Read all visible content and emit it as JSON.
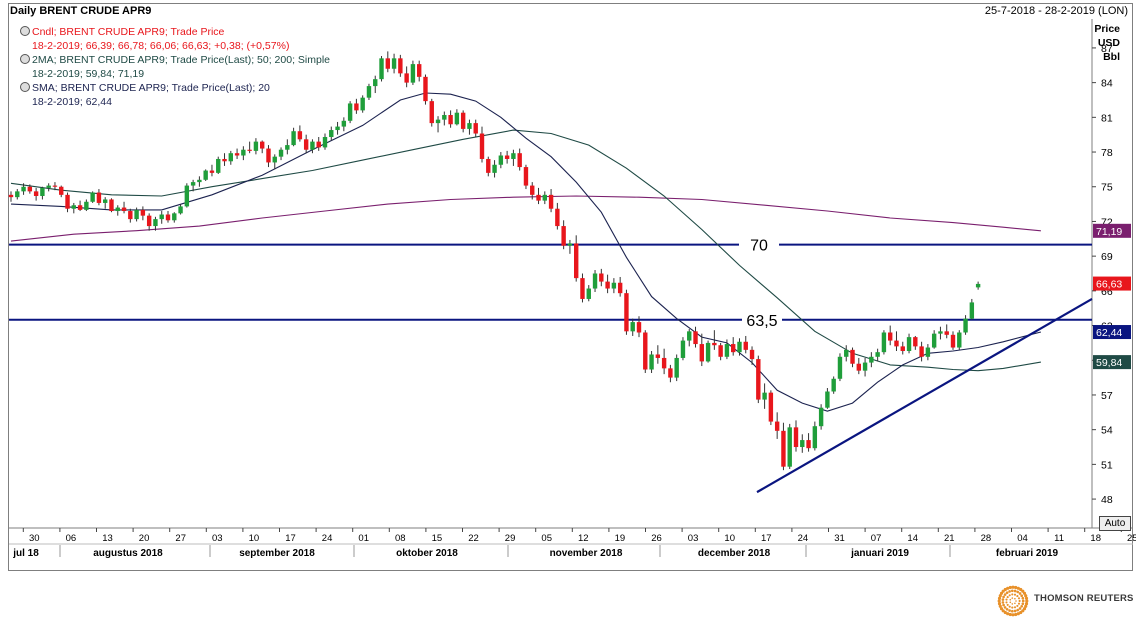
{
  "header": {
    "title": "Daily BRENT CRUDE APR9",
    "date_range": "25-7-2018 - 28-2-2019 (LON)"
  },
  "legend": {
    "line1": "Cndl; BRENT CRUDE APR9; Trade Price",
    "line2": "18-2-2019; 66,39; 66,78; 66,06; 66,63; +0,38; (+0,57%)",
    "line3": "2MA; BRENT CRUDE APR9; Trade Price(Last);  50; 200; Simple",
    "line4": "18-2-2019; 59,84; 71,19",
    "line5": "SMA; BRENT CRUDE APR9; Trade Price(Last);  20",
    "line6": "18-2-2019; 62,44"
  },
  "axis_unit": {
    "line1": "Price",
    "line2": "USD",
    "line3": "Bbl"
  },
  "auto_button": "Auto",
  "brand": "THOMSON REUTERS",
  "colors": {
    "up": "#1f9e3a",
    "down": "#e8161c",
    "sma20": "#1c2350",
    "ma50": "#1f4a45",
    "ma200": "#7a1f6e",
    "level": "#0a1580",
    "trend": "#0a1580"
  },
  "chart_data": {
    "type": "candlestick",
    "title": "Daily BRENT CRUDE APR9",
    "ylim": [
      45.5,
      89.5
    ],
    "yticks": [
      "48",
      "51",
      "54",
      "57",
      "60",
      "63",
      "66",
      "69",
      "72",
      "75",
      "78",
      "81",
      "84",
      "87"
    ],
    "xticks": [
      "30",
      "06",
      "13",
      "20",
      "27",
      "03",
      "10",
      "17",
      "24",
      "01",
      "08",
      "15",
      "22",
      "29",
      "05",
      "12",
      "19",
      "26",
      "03",
      "10",
      "17",
      "24",
      "31",
      "07",
      "14",
      "21",
      "28",
      "04",
      "11",
      "18",
      "25"
    ],
    "months": [
      "jul 18",
      "augustus 2018",
      "september 2018",
      "oktober 2018",
      "november 2018",
      "december 2018",
      "januari 2019",
      "februari 2019"
    ],
    "levels": [
      {
        "value": 70,
        "label": "70"
      },
      {
        "value": 63.5,
        "label": "63,5"
      }
    ],
    "trendline": [
      [
        "2018-12-24",
        48.6
      ],
      [
        "2019-02-28",
        65.2
      ]
    ],
    "last_value_tags": [
      {
        "value": 71.19,
        "label": "71,19",
        "series": "ma200"
      },
      {
        "value": 66.63,
        "label": "66,63",
        "series": "price"
      },
      {
        "value": 62.44,
        "label": "62,44",
        "series": "sma20"
      },
      {
        "value": 59.84,
        "label": "59,84",
        "series": "ma50"
      }
    ],
    "ohlc": [
      [
        74.3,
        74.6,
        73.7,
        74.1
      ],
      [
        74.1,
        74.8,
        73.9,
        74.6
      ],
      [
        74.6,
        75.3,
        74.3,
        75.0
      ],
      [
        75.0,
        75.2,
        74.4,
        74.6
      ],
      [
        74.6,
        74.9,
        73.8,
        74.2
      ],
      [
        74.2,
        75.0,
        73.9,
        74.9
      ],
      [
        74.9,
        75.3,
        74.6,
        75.1
      ],
      [
        75.1,
        75.4,
        74.7,
        75.0
      ],
      [
        75.0,
        75.1,
        74.1,
        74.3
      ],
      [
        74.3,
        74.5,
        72.8,
        73.1
      ],
      [
        73.1,
        73.6,
        72.7,
        73.4
      ],
      [
        73.4,
        73.8,
        72.9,
        73.0
      ],
      [
        73.0,
        73.9,
        72.9,
        73.7
      ],
      [
        73.7,
        74.6,
        73.6,
        74.5
      ],
      [
        74.5,
        74.8,
        73.4,
        73.6
      ],
      [
        73.6,
        74.1,
        73.1,
        73.9
      ],
      [
        73.9,
        74.0,
        72.8,
        72.9
      ],
      [
        72.9,
        73.4,
        72.5,
        73.2
      ],
      [
        73.2,
        73.7,
        72.7,
        72.9
      ],
      [
        72.9,
        73.1,
        71.9,
        72.2
      ],
      [
        72.2,
        73.2,
        72.0,
        73.0
      ],
      [
        73.0,
        73.3,
        72.1,
        72.5
      ],
      [
        72.5,
        72.7,
        71.2,
        71.6
      ],
      [
        71.6,
        72.4,
        71.2,
        72.2
      ],
      [
        72.2,
        72.9,
        71.8,
        72.6
      ],
      [
        72.6,
        72.9,
        71.9,
        72.1
      ],
      [
        72.1,
        72.8,
        71.9,
        72.7
      ],
      [
        72.7,
        73.5,
        72.6,
        73.3
      ],
      [
        73.3,
        75.3,
        73.2,
        75.1
      ],
      [
        75.1,
        75.6,
        74.6,
        75.4
      ],
      [
        75.4,
        75.9,
        75.0,
        75.6
      ],
      [
        75.6,
        76.5,
        75.5,
        76.4
      ],
      [
        76.4,
        76.9,
        75.9,
        76.2
      ],
      [
        76.2,
        77.6,
        76.1,
        77.4
      ],
      [
        77.4,
        77.9,
        76.8,
        77.2
      ],
      [
        77.2,
        78.1,
        76.9,
        77.9
      ],
      [
        77.9,
        78.3,
        77.4,
        77.7
      ],
      [
        77.7,
        78.5,
        77.3,
        78.2
      ],
      [
        78.2,
        78.9,
        77.9,
        78.1
      ],
      [
        78.1,
        79.2,
        77.8,
        78.9
      ],
      [
        78.9,
        79.0,
        77.9,
        78.3
      ],
      [
        78.3,
        78.6,
        76.7,
        77.1
      ],
      [
        77.1,
        77.8,
        76.5,
        77.6
      ],
      [
        77.6,
        78.4,
        77.3,
        78.2
      ],
      [
        78.2,
        79.1,
        77.8,
        78.6
      ],
      [
        78.6,
        80.1,
        78.5,
        79.8
      ],
      [
        79.8,
        80.3,
        78.9,
        79.1
      ],
      [
        79.1,
        79.5,
        77.9,
        78.2
      ],
      [
        78.2,
        79.1,
        77.9,
        78.9
      ],
      [
        78.9,
        79.3,
        78.1,
        78.4
      ],
      [
        78.4,
        79.6,
        78.2,
        79.3
      ],
      [
        79.3,
        80.2,
        79.0,
        79.9
      ],
      [
        79.9,
        80.6,
        79.5,
        80.2
      ],
      [
        80.2,
        81.0,
        79.8,
        80.7
      ],
      [
        80.7,
        82.4,
        80.5,
        82.2
      ],
      [
        82.2,
        82.6,
        81.3,
        81.6
      ],
      [
        81.6,
        82.9,
        81.4,
        82.7
      ],
      [
        82.7,
        83.9,
        82.5,
        83.7
      ],
      [
        83.7,
        84.6,
        83.1,
        84.3
      ],
      [
        84.3,
        86.3,
        84.1,
        86.1
      ],
      [
        86.1,
        86.7,
        84.9,
        85.2
      ],
      [
        85.2,
        86.5,
        84.8,
        86.1
      ],
      [
        86.1,
        86.4,
        84.5,
        84.8
      ],
      [
        84.8,
        85.4,
        83.6,
        84.0
      ],
      [
        84.0,
        85.9,
        83.8,
        85.6
      ],
      [
        85.6,
        85.9,
        84.1,
        84.5
      ],
      [
        84.5,
        84.7,
        82.1,
        82.4
      ],
      [
        82.4,
        82.6,
        80.2,
        80.5
      ],
      [
        80.5,
        81.1,
        79.7,
        80.8
      ],
      [
        80.8,
        81.5,
        80.3,
        81.2
      ],
      [
        81.2,
        81.6,
        80.1,
        80.4
      ],
      [
        80.4,
        81.7,
        80.3,
        81.4
      ],
      [
        81.4,
        81.6,
        79.7,
        80.0
      ],
      [
        80.0,
        80.8,
        79.5,
        80.5
      ],
      [
        80.5,
        80.8,
        79.3,
        79.6
      ],
      [
        79.6,
        80.2,
        77.1,
        77.4
      ],
      [
        77.4,
        77.6,
        75.9,
        76.2
      ],
      [
        76.2,
        77.3,
        75.8,
        76.9
      ],
      [
        76.9,
        78.0,
        76.6,
        77.7
      ],
      [
        77.7,
        78.1,
        77.0,
        77.4
      ],
      [
        77.4,
        78.2,
        76.8,
        77.9
      ],
      [
        77.9,
        78.3,
        76.4,
        76.7
      ],
      [
        76.7,
        76.9,
        74.8,
        75.1
      ],
      [
        75.1,
        75.4,
        73.9,
        74.3
      ],
      [
        74.3,
        74.9,
        73.5,
        73.8
      ],
      [
        73.8,
        74.6,
        73.5,
        74.3
      ],
      [
        74.3,
        74.8,
        72.8,
        73.1
      ],
      [
        73.1,
        73.6,
        71.3,
        71.6
      ],
      [
        71.6,
        72.1,
        69.6,
        69.9
      ],
      [
        69.9,
        70.4,
        69.2,
        70.1
      ],
      [
        70.1,
        70.8,
        66.8,
        67.1
      ],
      [
        67.1,
        67.5,
        65.0,
        65.3
      ],
      [
        65.3,
        66.5,
        65.1,
        66.2
      ],
      [
        66.2,
        67.8,
        65.9,
        67.5
      ],
      [
        67.5,
        67.9,
        66.4,
        66.8
      ],
      [
        66.8,
        67.4,
        65.8,
        66.2
      ],
      [
        66.2,
        67.1,
        65.8,
        66.7
      ],
      [
        66.7,
        67.2,
        65.5,
        65.8
      ],
      [
        65.8,
        66.1,
        62.2,
        62.5
      ],
      [
        62.5,
        63.6,
        62.1,
        63.3
      ],
      [
        63.3,
        63.8,
        62.0,
        62.4
      ],
      [
        62.4,
        62.6,
        58.9,
        59.2
      ],
      [
        59.2,
        60.8,
        58.9,
        60.5
      ],
      [
        60.5,
        61.3,
        59.7,
        60.2
      ],
      [
        60.2,
        61.0,
        58.8,
        59.3
      ],
      [
        59.3,
        59.6,
        58.1,
        58.5
      ],
      [
        58.5,
        60.5,
        58.2,
        60.2
      ],
      [
        60.2,
        62.0,
        60.0,
        61.7
      ],
      [
        61.7,
        62.7,
        61.2,
        62.5
      ],
      [
        62.5,
        62.9,
        61.1,
        61.4
      ],
      [
        61.4,
        62.3,
        59.5,
        59.9
      ],
      [
        59.9,
        61.7,
        59.8,
        61.5
      ],
      [
        61.5,
        62.6,
        60.9,
        61.3
      ],
      [
        61.3,
        61.5,
        60.0,
        60.3
      ],
      [
        60.3,
        61.8,
        60.1,
        61.4
      ],
      [
        61.4,
        62.0,
        60.4,
        60.7
      ],
      [
        60.7,
        61.9,
        60.4,
        61.6
      ],
      [
        61.6,
        62.1,
        60.6,
        60.9
      ],
      [
        60.9,
        61.2,
        59.6,
        60.1
      ],
      [
        60.1,
        60.4,
        56.3,
        56.6
      ],
      [
        56.6,
        58.0,
        55.8,
        57.2
      ],
      [
        57.2,
        57.4,
        54.4,
        54.7
      ],
      [
        54.7,
        55.5,
        53.2,
        53.9
      ],
      [
        53.9,
        54.6,
        50.5,
        50.8
      ],
      [
        50.8,
        54.5,
        50.6,
        54.2
      ],
      [
        54.2,
        54.8,
        52.1,
        52.5
      ],
      [
        52.5,
        53.6,
        52.0,
        53.1
      ],
      [
        53.1,
        53.7,
        52.1,
        52.4
      ],
      [
        52.4,
        54.7,
        52.2,
        54.3
      ],
      [
        54.3,
        56.2,
        54.0,
        55.9
      ],
      [
        55.9,
        57.6,
        55.8,
        57.3
      ],
      [
        57.3,
        58.6,
        57.1,
        58.4
      ],
      [
        58.4,
        60.6,
        58.2,
        60.3
      ],
      [
        60.3,
        61.3,
        59.9,
        60.9
      ],
      [
        60.9,
        61.1,
        59.4,
        59.7
      ],
      [
        59.7,
        60.2,
        58.8,
        59.1
      ],
      [
        59.1,
        60.2,
        58.6,
        59.8
      ],
      [
        59.8,
        60.7,
        59.4,
        60.3
      ],
      [
        60.3,
        61.0,
        59.9,
        60.7
      ],
      [
        60.7,
        62.6,
        60.5,
        62.4
      ],
      [
        62.4,
        63.0,
        61.3,
        61.7
      ],
      [
        61.7,
        62.5,
        60.8,
        61.2
      ],
      [
        61.2,
        61.6,
        60.5,
        60.8
      ],
      [
        60.8,
        62.3,
        60.6,
        62.0
      ],
      [
        62.0,
        62.1,
        60.9,
        61.2
      ],
      [
        61.2,
        61.6,
        59.9,
        60.3
      ],
      [
        60.3,
        61.4,
        60.0,
        61.1
      ],
      [
        61.1,
        62.6,
        61.0,
        62.3
      ],
      [
        62.3,
        62.9,
        61.8,
        62.5
      ],
      [
        62.5,
        63.1,
        61.9,
        62.2
      ],
      [
        62.2,
        62.5,
        60.9,
        61.1
      ],
      [
        61.1,
        62.6,
        60.9,
        62.4
      ],
      [
        62.4,
        63.9,
        62.2,
        63.6
      ],
      [
        63.6,
        65.3,
        63.5,
        65.0
      ],
      [
        66.3,
        66.8,
        66.1,
        66.6
      ]
    ],
    "sma20": [
      [
        0,
        73.5
      ],
      [
        8,
        73.3
      ],
      [
        16,
        73.0
      ],
      [
        24,
        73.0
      ],
      [
        32,
        74.3
      ],
      [
        40,
        76.0
      ],
      [
        48,
        78.2
      ],
      [
        56,
        80.3
      ],
      [
        62,
        82.5
      ],
      [
        66,
        83.1
      ],
      [
        70,
        83.0
      ],
      [
        74,
        82.4
      ],
      [
        78,
        81.0
      ],
      [
        82,
        79.2
      ],
      [
        86,
        77.6
      ],
      [
        90,
        75.4
      ],
      [
        94,
        72.8
      ],
      [
        98,
        68.9
      ],
      [
        102,
        65.5
      ],
      [
        106,
        63.6
      ],
      [
        110,
        62.0
      ],
      [
        114,
        61.5
      ],
      [
        118,
        59.8
      ],
      [
        122,
        57.4
      ],
      [
        126,
        56.3
      ],
      [
        130,
        55.6
      ],
      [
        134,
        56.3
      ],
      [
        138,
        58.1
      ],
      [
        142,
        59.6
      ],
      [
        146,
        60.6
      ],
      [
        150,
        60.8
      ],
      [
        154,
        61.1
      ],
      [
        158,
        61.6
      ],
      [
        164,
        62.44
      ]
    ],
    "ma50": [
      [
        0,
        75.3
      ],
      [
        8,
        74.7
      ],
      [
        16,
        74.3
      ],
      [
        24,
        74.2
      ],
      [
        32,
        75.0
      ],
      [
        40,
        75.7
      ],
      [
        48,
        76.4
      ],
      [
        56,
        77.3
      ],
      [
        64,
        78.2
      ],
      [
        72,
        79.1
      ],
      [
        80,
        79.9
      ],
      [
        86,
        79.6
      ],
      [
        92,
        78.6
      ],
      [
        98,
        76.6
      ],
      [
        104,
        74.2
      ],
      [
        110,
        71.3
      ],
      [
        116,
        68.2
      ],
      [
        122,
        65.4
      ],
      [
        128,
        62.5
      ],
      [
        134,
        60.6
      ],
      [
        140,
        59.6
      ],
      [
        146,
        59.4
      ],
      [
        150,
        59.2
      ],
      [
        154,
        59.1
      ],
      [
        158,
        59.3
      ],
      [
        164,
        59.84
      ]
    ],
    "ma200": [
      [
        0,
        70.3
      ],
      [
        10,
        70.9
      ],
      [
        20,
        71.2
      ],
      [
        30,
        71.6
      ],
      [
        40,
        72.3
      ],
      [
        50,
        72.9
      ],
      [
        60,
        73.5
      ],
      [
        70,
        73.9
      ],
      [
        80,
        74.1
      ],
      [
        90,
        74.2
      ],
      [
        100,
        74.1
      ],
      [
        110,
        73.9
      ],
      [
        120,
        73.4
      ],
      [
        130,
        72.9
      ],
      [
        140,
        72.3
      ],
      [
        150,
        71.9
      ],
      [
        158,
        71.5
      ],
      [
        164,
        71.19
      ]
    ]
  }
}
